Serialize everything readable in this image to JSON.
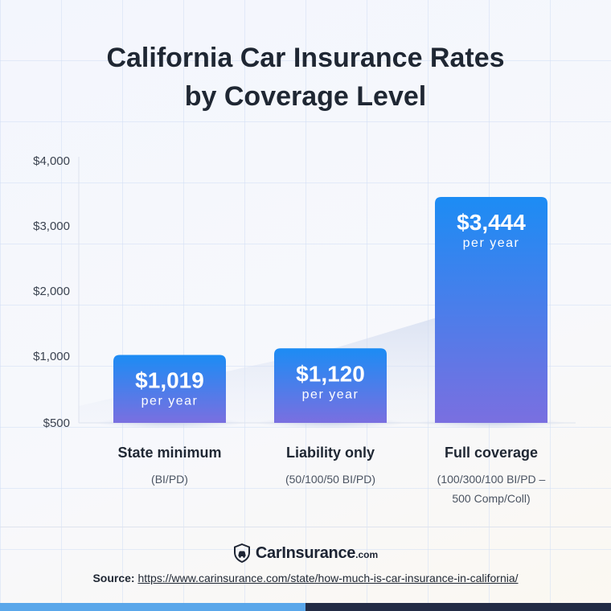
{
  "title_lines": [
    "California Car Insurance Rates",
    "by Coverage Level"
  ],
  "colors": {
    "bar_top": "#1c8cf4",
    "bar_bottom": "#7a6fe0",
    "text": "#1f2733",
    "footer_left": "#5aa7ea",
    "footer_right": "#232c45"
  },
  "chart_data": {
    "type": "bar",
    "title": "California Car Insurance Rates by Coverage Level",
    "categories": [
      "State minimum",
      "Liability only",
      "Full coverage"
    ],
    "subtitles": [
      "(BI/PD)",
      "(50/100/50 BI/PD)",
      "(100/300/100 BI/PD –\n500 Comp/Coll)"
    ],
    "values": [
      1019,
      1120,
      3444
    ],
    "value_labels": [
      "$1,019",
      "$1,120",
      "$3,444"
    ],
    "unit_label": "per year",
    "yticks": [
      500,
      1000,
      2000,
      3000,
      4000
    ],
    "ytick_labels": [
      "$500",
      "$1,000",
      "$2,000",
      "$3,000",
      "$4,000"
    ],
    "xlabel": "",
    "ylabel": "",
    "grid": true
  },
  "brand": {
    "name": "CarInsurance",
    "suffix": ".com",
    "logo_icon": "shield-car-icon"
  },
  "source": {
    "label": "Source:",
    "url": "https://www.carinsurance.com/state/how-much-is-car-insurance-in-california/"
  }
}
